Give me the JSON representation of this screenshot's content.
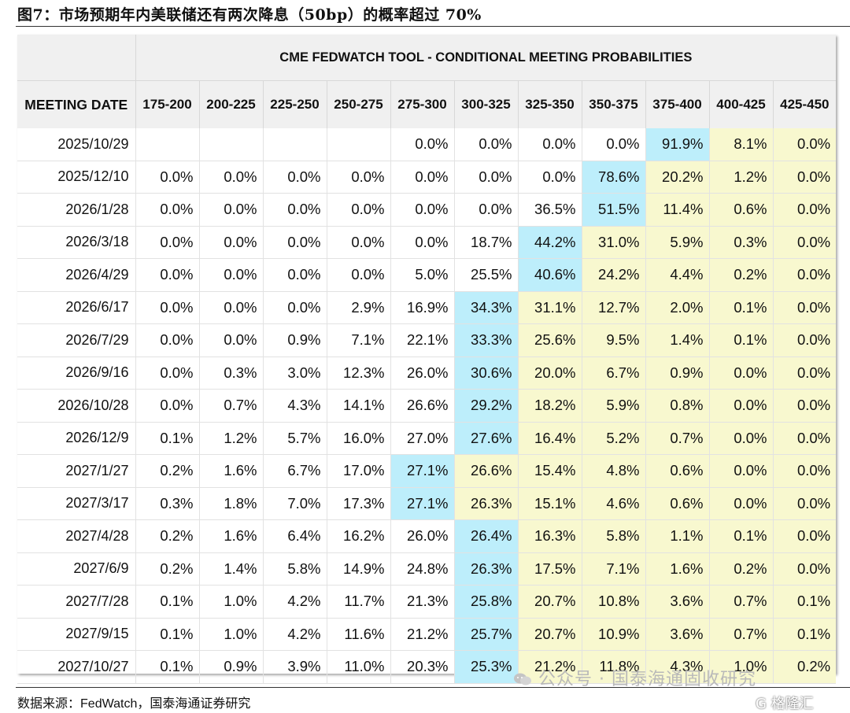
{
  "figure": {
    "title": "图7：市场预期年内美联储还有两次降息（50bp）的概率超过 70%",
    "source_label": "数据来源：",
    "source_name": "FedWatch",
    "source_rest": "，国泰海通证券研究",
    "watermark": "公众号 · 国泰海通固收研究",
    "corner_logo": "G 格隆汇"
  },
  "colors": {
    "highest_probability": "#bdeefb",
    "above_highest": "#f8f8cf",
    "header_bg": "#f0f0f0"
  },
  "chart_data": {
    "type": "table",
    "title": "CME FEDWATCH TOOL - CONDITIONAL MEETING PROBABILITIES",
    "row_header": "MEETING DATE",
    "columns": [
      "175-200",
      "200-225",
      "225-250",
      "250-275",
      "275-300",
      "300-325",
      "325-350",
      "350-375",
      "375-400",
      "400-425",
      "425-450"
    ],
    "rows": [
      {
        "date": "2025/10/29",
        "values": [
          "",
          "",
          "",
          "",
          "0.0%",
          "0.0%",
          "0.0%",
          "0.0%",
          "91.9%",
          "8.1%",
          "0.0%"
        ],
        "max_col": 8
      },
      {
        "date": "2025/12/10",
        "values": [
          "0.0%",
          "0.0%",
          "0.0%",
          "0.0%",
          "0.0%",
          "0.0%",
          "0.0%",
          "78.6%",
          "20.2%",
          "1.2%",
          "0.0%"
        ],
        "max_col": 7
      },
      {
        "date": "2026/1/28",
        "values": [
          "0.0%",
          "0.0%",
          "0.0%",
          "0.0%",
          "0.0%",
          "0.0%",
          "36.5%",
          "51.5%",
          "11.4%",
          "0.6%",
          "0.0%"
        ],
        "max_col": 7
      },
      {
        "date": "2026/3/18",
        "values": [
          "0.0%",
          "0.0%",
          "0.0%",
          "0.0%",
          "0.0%",
          "18.7%",
          "44.2%",
          "31.0%",
          "5.9%",
          "0.3%",
          "0.0%"
        ],
        "max_col": 6
      },
      {
        "date": "2026/4/29",
        "values": [
          "0.0%",
          "0.0%",
          "0.0%",
          "0.0%",
          "5.0%",
          "25.5%",
          "40.6%",
          "24.2%",
          "4.4%",
          "0.2%",
          "0.0%"
        ],
        "max_col": 6
      },
      {
        "date": "2026/6/17",
        "values": [
          "0.0%",
          "0.0%",
          "0.0%",
          "2.9%",
          "16.9%",
          "34.3%",
          "31.1%",
          "12.7%",
          "2.0%",
          "0.1%",
          "0.0%"
        ],
        "max_col": 5
      },
      {
        "date": "2026/7/29",
        "values": [
          "0.0%",
          "0.0%",
          "0.9%",
          "7.1%",
          "22.1%",
          "33.3%",
          "25.6%",
          "9.5%",
          "1.4%",
          "0.1%",
          "0.0%"
        ],
        "max_col": 5
      },
      {
        "date": "2026/9/16",
        "values": [
          "0.0%",
          "0.3%",
          "3.0%",
          "12.3%",
          "26.0%",
          "30.6%",
          "20.0%",
          "6.7%",
          "0.9%",
          "0.0%",
          "0.0%"
        ],
        "max_col": 5
      },
      {
        "date": "2026/10/28",
        "values": [
          "0.0%",
          "0.7%",
          "4.3%",
          "14.1%",
          "26.6%",
          "29.2%",
          "18.2%",
          "5.9%",
          "0.8%",
          "0.0%",
          "0.0%"
        ],
        "max_col": 5
      },
      {
        "date": "2026/12/9",
        "values": [
          "0.1%",
          "1.2%",
          "5.7%",
          "16.0%",
          "27.0%",
          "27.6%",
          "16.4%",
          "5.2%",
          "0.7%",
          "0.0%",
          "0.0%"
        ],
        "max_col": 5
      },
      {
        "date": "2027/1/27",
        "values": [
          "0.2%",
          "1.6%",
          "6.7%",
          "17.0%",
          "27.1%",
          "26.6%",
          "15.4%",
          "4.8%",
          "0.6%",
          "0.0%",
          "0.0%"
        ],
        "max_col": 4
      },
      {
        "date": "2027/3/17",
        "values": [
          "0.3%",
          "1.8%",
          "7.0%",
          "17.3%",
          "27.1%",
          "26.3%",
          "15.1%",
          "4.6%",
          "0.6%",
          "0.0%",
          "0.0%"
        ],
        "max_col": 4
      },
      {
        "date": "2027/4/28",
        "values": [
          "0.2%",
          "1.6%",
          "6.4%",
          "16.2%",
          "26.0%",
          "26.4%",
          "16.3%",
          "5.8%",
          "1.1%",
          "0.1%",
          "0.0%"
        ],
        "max_col": 5
      },
      {
        "date": "2027/6/9",
        "values": [
          "0.2%",
          "1.4%",
          "5.8%",
          "14.9%",
          "24.8%",
          "26.3%",
          "17.5%",
          "7.1%",
          "1.6%",
          "0.2%",
          "0.0%"
        ],
        "max_col": 5
      },
      {
        "date": "2027/7/28",
        "values": [
          "0.1%",
          "1.0%",
          "4.2%",
          "11.7%",
          "21.3%",
          "25.8%",
          "20.7%",
          "10.8%",
          "3.6%",
          "0.7%",
          "0.1%"
        ],
        "max_col": 5
      },
      {
        "date": "2027/9/15",
        "values": [
          "0.1%",
          "1.0%",
          "4.2%",
          "11.6%",
          "21.2%",
          "25.7%",
          "20.7%",
          "10.9%",
          "3.6%",
          "0.7%",
          "0.1%"
        ],
        "max_col": 5
      },
      {
        "date": "2027/10/27",
        "values": [
          "0.1%",
          "0.9%",
          "3.9%",
          "11.0%",
          "20.3%",
          "25.3%",
          "21.2%",
          "11.8%",
          "4.3%",
          "1.0%",
          "0.2%"
        ],
        "max_col": 5
      }
    ]
  }
}
